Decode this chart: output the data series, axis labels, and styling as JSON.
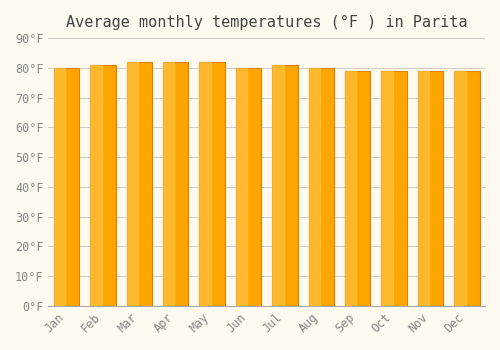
{
  "title": "Average monthly temperatures (°F ) in Parita",
  "months": [
    "Jan",
    "Feb",
    "Mar",
    "Apr",
    "May",
    "Jun",
    "Jul",
    "Aug",
    "Sep",
    "Oct",
    "Nov",
    "Dec"
  ],
  "values": [
    80,
    81,
    82,
    82,
    82,
    80,
    81,
    80,
    79,
    79,
    79,
    79
  ],
  "bar_color": "#FFA500",
  "bar_edge_color": "#E08000",
  "background_color": "#FFFAF0",
  "grid_color": "#CCCCCC",
  "text_color": "#888888",
  "ylim": [
    0,
    90
  ],
  "yticks": [
    0,
    10,
    20,
    30,
    40,
    50,
    60,
    70,
    80,
    90
  ],
  "ytick_labels": [
    "0°F",
    "10°F",
    "20°F",
    "30°F",
    "40°F",
    "50°F",
    "60°F",
    "70°F",
    "80°F",
    "90°F"
  ],
  "title_fontsize": 11,
  "tick_fontsize": 8.5,
  "font_family": "monospace"
}
